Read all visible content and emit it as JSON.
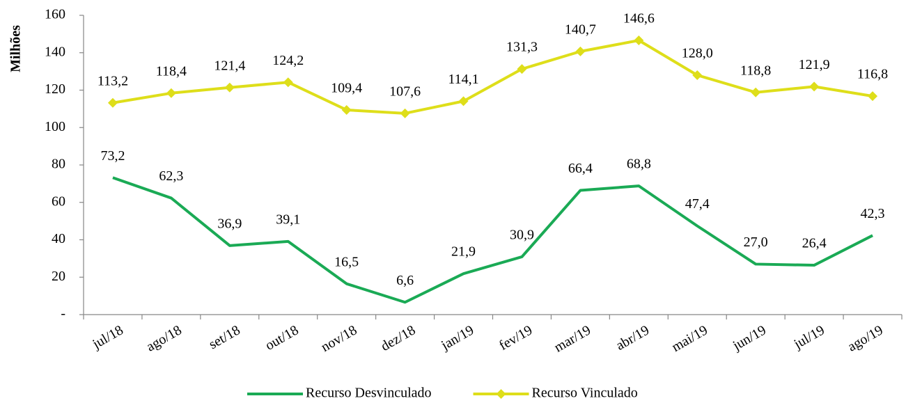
{
  "chart_data": {
    "type": "line",
    "ylabel": "Milhões",
    "categories": [
      "jul/18",
      "ago/18",
      "set/18",
      "out/18",
      "nov/18",
      "dez/18",
      "jan/19",
      "fev/19",
      "mar/19",
      "abr/19",
      "mai/19",
      "jun/19",
      "jul/19",
      "ago/19"
    ],
    "series": [
      {
        "name": "Recurso Desvinculado",
        "color": "#1aaa55",
        "values": [
          73.2,
          62.3,
          36.9,
          39.1,
          16.5,
          6.6,
          21.9,
          30.9,
          66.4,
          68.8,
          47.4,
          27.0,
          26.4,
          42.3
        ],
        "value_labels": [
          "73,2",
          "62,3",
          "36,9",
          "39,1",
          "16,5",
          "6,6",
          "21,9",
          "30,9",
          "66,4",
          "68,8",
          "47,4",
          "27,0",
          "26,4",
          "42,3"
        ]
      },
      {
        "name": "Recurso Vinculado",
        "color": "#dede1a",
        "marker": "diamond",
        "values": [
          113.2,
          118.4,
          121.4,
          124.2,
          109.4,
          107.6,
          114.1,
          131.3,
          140.7,
          146.6,
          128.0,
          118.8,
          121.9,
          116.8
        ],
        "value_labels": [
          "113,2",
          "118,4",
          "121,4",
          "124,2",
          "109,4",
          "107,6",
          "114,1",
          "131,3",
          "140,7",
          "146,6",
          "128,0",
          "118,8",
          "121,9",
          "116,8"
        ]
      }
    ],
    "ylim": [
      0,
      160
    ],
    "yticks": [
      {
        "value": 0,
        "label": "-"
      },
      20,
      40,
      60,
      80,
      100,
      120,
      140,
      160
    ],
    "grid": false,
    "legend": "bottom"
  }
}
